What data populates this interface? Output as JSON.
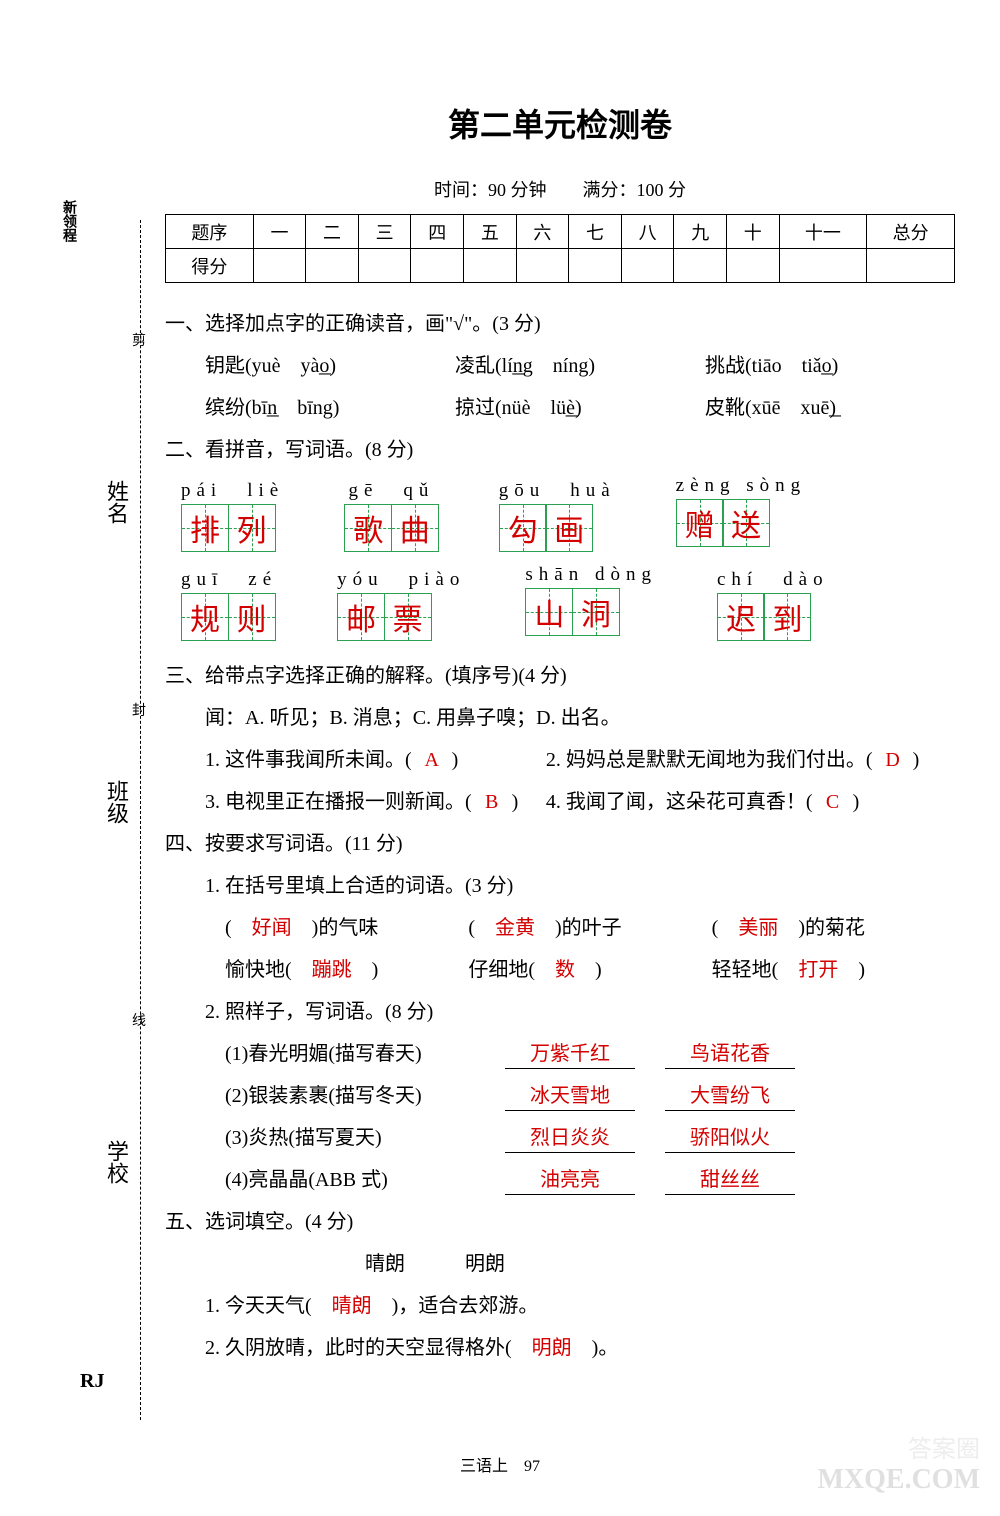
{
  "title": "第二单元检测卷",
  "meta": "时间：90 分钟　　满分：100 分",
  "brand": "新领程",
  "rj": "RJ",
  "score_header": [
    "题序",
    "一",
    "二",
    "三",
    "四",
    "五",
    "六",
    "七",
    "八",
    "九",
    "十",
    "十一",
    "总分"
  ],
  "score_row2": "得分",
  "cutmarks": {
    "a": "剪",
    "b": "封",
    "c": "线"
  },
  "vlabels": {
    "name": "姓名",
    "class": "班级",
    "school": "学校"
  },
  "q1": {
    "title": "一、选择加点字的正确读音，画\"√\"。(3 分)",
    "items": [
      {
        "word": "钥匙",
        "opts": "(yuè　yà͟o)",
        "ans_idx": 1
      },
      {
        "word": "凌乱",
        "opts": "(lí͟ng　níng)",
        "ans_idx": 0
      },
      {
        "word": "挑战",
        "opts": "(tiāo　tiǎ͟o)",
        "ans_idx": 1
      },
      {
        "word": "缤纷",
        "opts": "(bī͟n　bīng)",
        "ans_idx": 0
      },
      {
        "word": "掠过",
        "opts": "(nüè　lü͟è)",
        "ans_idx": 1
      },
      {
        "word": "皮靴",
        "opts": "(xūē　xuē͟)",
        "ans_idx": 1
      }
    ]
  },
  "q2": {
    "title": "二、看拼音，写词语。(8 分)",
    "row1": [
      {
        "py": "pái　liè",
        "ch": [
          "排",
          "列"
        ]
      },
      {
        "py": "gē　qǔ",
        "ch": [
          "歌",
          "曲"
        ]
      },
      {
        "py": "gōu　huà",
        "ch": [
          "勾",
          "画"
        ]
      },
      {
        "py": "zèng sòng",
        "ch": [
          "赠",
          "送"
        ]
      }
    ],
    "row2": [
      {
        "py": "guī　zé",
        "ch": [
          "规",
          "则"
        ]
      },
      {
        "py": "yóu　piào",
        "ch": [
          "邮",
          "票"
        ]
      },
      {
        "py": "shān dòng",
        "ch": [
          "山",
          "洞"
        ]
      },
      {
        "py": "chí　dào",
        "ch": [
          "迟",
          "到"
        ]
      }
    ]
  },
  "q3": {
    "title": "三、给带点字选择正确的解释。(填序号)(4 分)",
    "defs": "闻：A. 听见；B. 消息；C. 用鼻子嗅；D. 出名。",
    "items": [
      {
        "text": "1. 这件事我闻所未闻。(",
        "ans": "A",
        "tail": ")"
      },
      {
        "text": "2. 妈妈总是默默无闻地为我们付出。(",
        "ans": "D",
        "tail": ")"
      },
      {
        "text": "3. 电视里正在播报一则新闻。(",
        "ans": "B",
        "tail": ")"
      },
      {
        "text": "4. 我闻了闻，这朵花可真香！(",
        "ans": "C",
        "tail": ")"
      }
    ]
  },
  "q4": {
    "title": "四、按要求写词语。(11 分)",
    "sub1": {
      "title": "1. 在括号里填上合适的词语。(3 分)",
      "row1": [
        {
          "ans": "好闻",
          "suf": ")的气味"
        },
        {
          "ans": "金黄",
          "suf": ")的叶子"
        },
        {
          "ans": "美丽",
          "suf": ")的菊花"
        }
      ],
      "row2": [
        {
          "pre": "愉快地(",
          "ans": "蹦跳",
          "suf": ")"
        },
        {
          "pre": "仔细地(",
          "ans": "数",
          "suf": ")"
        },
        {
          "pre": "轻轻地(",
          "ans": "打开",
          "suf": ")"
        }
      ]
    },
    "sub2": {
      "title": "2. 照样子，写词语。(8 分)",
      "rows": [
        {
          "label": "(1)春光明媚(描写春天)",
          "a1": "万紫千红",
          "a2": "鸟语花香"
        },
        {
          "label": "(2)银装素裹(描写冬天)",
          "a1": "冰天雪地",
          "a2": "大雪纷飞"
        },
        {
          "label": "(3)炎热(描写夏天)",
          "a1": "烈日炎炎",
          "a2": "骄阳似火"
        },
        {
          "label": "(4)亮晶晶(ABB 式)",
          "a1": "油亮亮",
          "a2": "甜丝丝"
        }
      ]
    }
  },
  "q5": {
    "title": "五、选词填空。(4 分)",
    "words": "晴朗　　　明朗",
    "items": [
      {
        "text": "1. 今天天气(",
        "ans": "晴朗",
        "tail": ")，适合去郊游。"
      },
      {
        "text": "2. 久阴放晴，此时的天空显得格外(",
        "ans": "明朗",
        "tail": ")。"
      }
    ]
  },
  "footer": "三语上　97",
  "watermark1": "MXQE.COM",
  "watermark2": "答案圈"
}
